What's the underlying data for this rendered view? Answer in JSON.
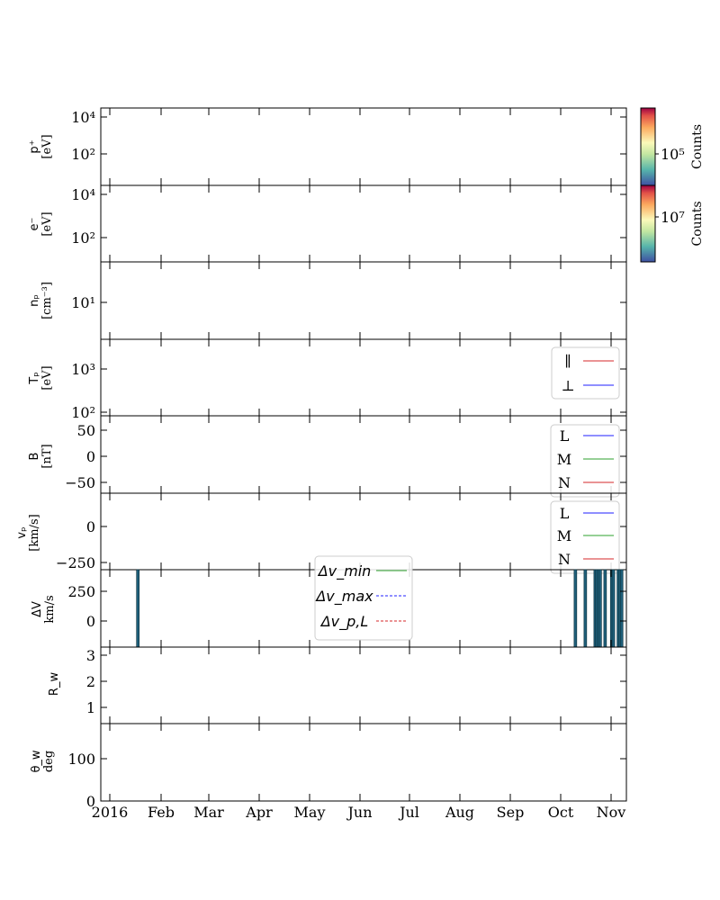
{
  "chart_data": {
    "type": "stacked-timeseries",
    "x_axis": {
      "ticks": [
        "2016",
        "Feb",
        "Mar",
        "Apr",
        "May",
        "Jun",
        "Jul",
        "Aug",
        "Sep",
        "Oct",
        "Nov"
      ],
      "range": [
        "2016-01-01",
        "2016-11-10"
      ]
    },
    "panels": [
      {
        "id": "p1",
        "ylabel": [
          "p⁺",
          "[eV]"
        ],
        "yscale": "log",
        "ytick_labels": [
          "10⁴",
          "10²"
        ],
        "legend": [],
        "series": []
      },
      {
        "id": "p2",
        "ylabel": [
          "e⁻",
          "[eV]"
        ],
        "yscale": "log",
        "ytick_labels": [
          "10⁴",
          "10²"
        ],
        "legend": [],
        "series": []
      },
      {
        "id": "p3",
        "ylabel": [
          "nₚ",
          "[cm⁻³]"
        ],
        "yscale": "log",
        "ytick_labels": [
          "10¹"
        ],
        "legend": [],
        "series": []
      },
      {
        "id": "p4",
        "ylabel": [
          "Tₚ",
          "[eV]"
        ],
        "yscale": "log",
        "ytick_labels": [
          "10³",
          "10²"
        ],
        "legend": [
          {
            "label": "∥",
            "color": "#d62728"
          },
          {
            "label": "⊥",
            "color": "#1f1fff"
          }
        ],
        "series": []
      },
      {
        "id": "p5",
        "ylabel": [
          "B",
          "[nT]"
        ],
        "yscale": "linear",
        "ylim": [
          -75,
          75
        ],
        "ytick_labels": [
          "50",
          "0",
          "−50"
        ],
        "legend": [
          {
            "label": "L",
            "color": "#1f1fff"
          },
          {
            "label": "M",
            "color": "#2ca02c"
          },
          {
            "label": "N",
            "color": "#d62728"
          }
        ],
        "series": []
      },
      {
        "id": "p6",
        "ylabel": [
          "vₚ",
          "[km/s]"
        ],
        "yscale": "linear",
        "ylim": [
          -350,
          250
        ],
        "ytick_labels": [
          "0",
          "−250"
        ],
        "legend": [
          {
            "label": "L",
            "color": "#1f1fff"
          },
          {
            "label": "M",
            "color": "#2ca02c"
          },
          {
            "label": "N",
            "color": "#d62728"
          }
        ],
        "series": []
      },
      {
        "id": "p7",
        "ylabel": [
          "ΔV",
          "km/s"
        ],
        "yscale": "linear",
        "ylim": [
          -250,
          500
        ],
        "ytick_labels": [
          "250",
          "0"
        ],
        "legend": [
          {
            "label": "Δv_min",
            "color": "#2ca02c"
          },
          {
            "label": "Δv_max",
            "color": "#1f1fff"
          },
          {
            "label": "Δv_p,L",
            "color": "#d62728"
          }
        ],
        "bars": [
          "2016-01-18",
          "2016-10-09",
          "2016-10-15",
          "2016-10-21",
          "2016-10-22",
          "2016-10-23",
          "2016-10-24",
          "2016-10-27",
          "2016-10-31",
          "2016-11-01",
          "2016-11-04",
          "2016-11-05",
          "2016-11-06"
        ]
      },
      {
        "id": "p8",
        "ylabel": [
          "R_w"
        ],
        "yscale": "linear",
        "ylim": [
          0.5,
          3.4
        ],
        "ytick_labels": [
          "3",
          "2",
          "1"
        ],
        "legend": [],
        "series": []
      },
      {
        "id": "p9",
        "ylabel": [
          "θ_w",
          "deg"
        ],
        "yscale": "linear",
        "ylim": [
          0,
          185
        ],
        "ytick_labels": [
          "100",
          "0"
        ],
        "legend": [],
        "series": []
      }
    ],
    "colorbars": [
      {
        "label": "Counts",
        "tick_label": "10⁵"
      },
      {
        "label": "Counts",
        "tick_label": "10⁷"
      }
    ]
  }
}
